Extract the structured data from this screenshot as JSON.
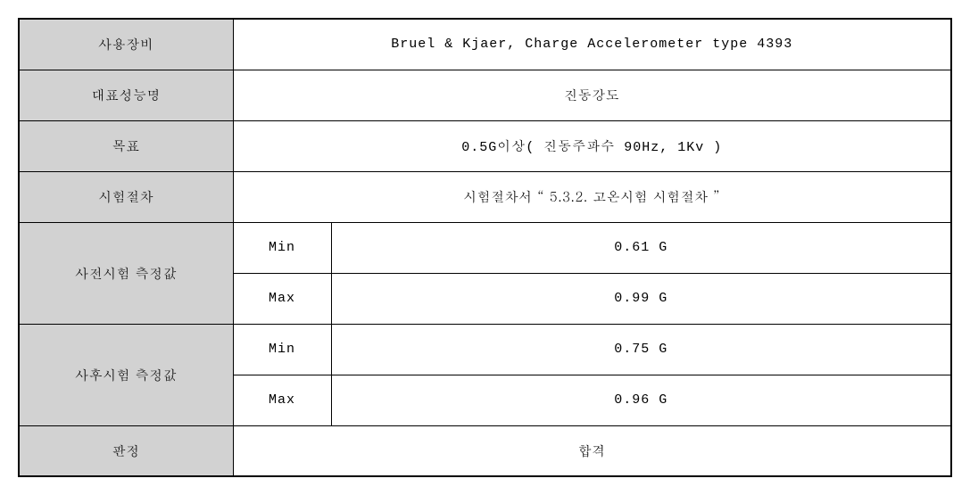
{
  "rows": {
    "equipment": {
      "label": "사용장비",
      "value": "Bruel & Kjaer, Charge Accelerometer type 4393"
    },
    "performance": {
      "label": "대표성능명",
      "value": "진동강도"
    },
    "target": {
      "label": "목표",
      "value": "0.5G이상( 진동주파수 90Hz, 1Kv )"
    },
    "procedure": {
      "label": "시험절차",
      "value": "시험절차서 “ 5.3.2. 고온시험 시험절차 ”"
    },
    "preTest": {
      "label": "사전시험 측정값",
      "min": {
        "label": "Min",
        "value": "0.61 G"
      },
      "max": {
        "label": "Max",
        "value": "0.99 G"
      }
    },
    "postTest": {
      "label": "사후시험 측정값",
      "min": {
        "label": "Min",
        "value": "0.75 G"
      },
      "max": {
        "label": "Max",
        "value": "0.96 G"
      }
    },
    "judgment": {
      "label": "판정",
      "value": "합격"
    }
  }
}
